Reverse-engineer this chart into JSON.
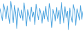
{
  "values": [
    2.1,
    0.5,
    -1.2,
    3.5,
    1.8,
    -0.8,
    2.9,
    0.3,
    -2.1,
    4.2,
    1.5,
    -1.8,
    3.1,
    0.8,
    -3.5,
    2.4,
    1.1,
    -0.5,
    1.8,
    -1.2,
    3.8,
    0.6,
    -2.8,
    1.9,
    0.4,
    -1.5,
    2.6,
    -0.3,
    1.2,
    -2.4,
    3.4,
    1.0,
    -1.0,
    2.2,
    0.7,
    -2.0,
    1.5,
    -0.8,
    2.8,
    0.2,
    -1.6,
    3.6,
    1.3,
    -3.2,
    2.0,
    0.5,
    -1.4,
    2.5,
    -0.6,
    1.7,
    -2.2,
    3.9,
    0.9,
    -1.9,
    2.7,
    -0.4,
    1.4,
    -3.8,
    2.3,
    0.1,
    -1.7,
    3.3,
    1.6,
    -2.6,
    2.1,
    0.8,
    -1.1,
    3.0,
    -0.9,
    1.3
  ],
  "line_color": "#4aa3df",
  "background_color": "#ffffff",
  "linewidth": 0.7
}
